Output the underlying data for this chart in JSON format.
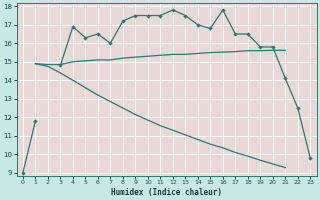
{
  "xlabel": "Humidex (Indice chaleur)",
  "x": [
    0,
    1,
    2,
    3,
    4,
    5,
    6,
    7,
    8,
    9,
    10,
    11,
    12,
    13,
    14,
    15,
    16,
    17,
    18,
    19,
    20,
    21,
    22,
    23
  ],
  "line1": [
    9.0,
    11.8,
    null,
    14.8,
    16.9,
    16.3,
    16.5,
    16.0,
    17.2,
    17.5,
    17.5,
    17.5,
    17.8,
    17.5,
    17.0,
    16.8,
    17.8,
    16.5,
    16.5,
    15.8,
    15.8,
    14.1,
    12.5,
    9.8
  ],
  "line2": [
    null,
    14.9,
    14.85,
    14.85,
    15.0,
    15.05,
    15.1,
    15.1,
    15.2,
    15.25,
    15.3,
    15.35,
    15.4,
    15.4,
    15.45,
    15.5,
    15.52,
    15.55,
    15.6,
    15.6,
    15.62,
    15.62,
    null,
    null
  ],
  "line3": [
    null,
    14.9,
    14.75,
    14.4,
    14.0,
    13.6,
    13.2,
    12.85,
    12.5,
    12.15,
    11.85,
    11.55,
    11.3,
    11.05,
    10.8,
    10.55,
    10.35,
    10.1,
    9.9,
    9.68,
    9.48,
    9.28,
    null,
    null
  ],
  "line_color": "#2a7a6a",
  "plot_bg": "#e8d8d8",
  "fig_bg": "#c8e8e4",
  "grid_color": "#ffffff",
  "ylim": [
    9,
    18
  ],
  "xlim": [
    -0.5,
    23.5
  ],
  "yticks": [
    9,
    10,
    11,
    12,
    13,
    14,
    15,
    16,
    17,
    18
  ],
  "xticks": [
    0,
    1,
    2,
    3,
    4,
    5,
    6,
    7,
    8,
    9,
    10,
    11,
    12,
    13,
    14,
    15,
    16,
    17,
    18,
    19,
    20,
    21,
    22,
    23
  ]
}
